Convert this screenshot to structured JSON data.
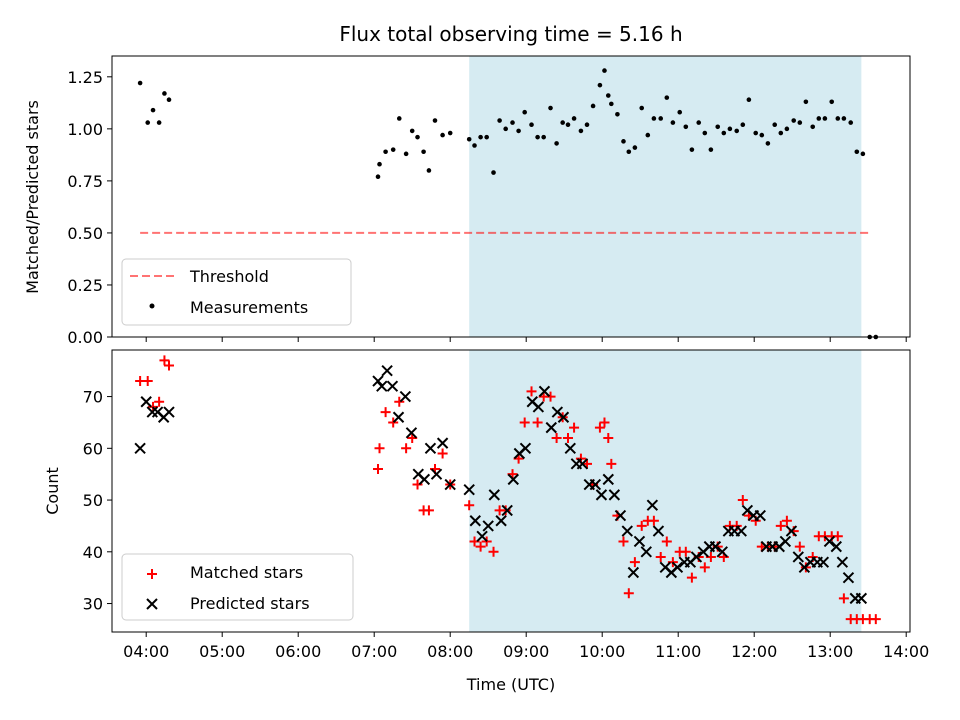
{
  "colors": {
    "shade": "#add8e6",
    "threshold": "#ff0000",
    "measurements": "#000000",
    "matched": "#ff0000",
    "predicted": "#000000"
  },
  "chart_data": [
    {
      "type": "scatter",
      "title": "Flux total observing time = 5.16 h",
      "xlabel": "",
      "ylabel": "Matched/Predicted stars",
      "x_unit": "hours UTC",
      "xlim": [
        3.55,
        14.05
      ],
      "ylim": [
        0.0,
        1.35
      ],
      "yticks": [
        0.0,
        0.25,
        0.5,
        0.75,
        1.0,
        1.25
      ],
      "ytick_labels": [
        "0.00",
        "0.25",
        "0.50",
        "0.75",
        "1.00",
        "1.25"
      ],
      "xticks": [
        4,
        5,
        6,
        7,
        8,
        9,
        10,
        11,
        12,
        13,
        14
      ],
      "shaded_interval": [
        8.25,
        13.41
      ],
      "legend_position": "lower-left",
      "series": [
        {
          "name": "Threshold",
          "kind": "dashed-line",
          "x": [
            3.92,
            13.55
          ],
          "y": [
            0.5,
            0.5
          ]
        },
        {
          "name": "Measurements",
          "kind": "dots",
          "x": [
            3.92,
            4.02,
            4.09,
            4.17,
            4.24,
            4.3,
            7.05,
            7.07,
            7.15,
            7.25,
            7.33,
            7.42,
            7.5,
            7.57,
            7.65,
            7.72,
            7.8,
            7.9,
            8.0,
            8.25,
            8.32,
            8.4,
            8.48,
            8.57,
            8.65,
            8.73,
            8.82,
            8.9,
            8.98,
            9.07,
            9.15,
            9.23,
            9.32,
            9.4,
            9.48,
            9.55,
            9.63,
            9.72,
            9.8,
            9.88,
            9.97,
            10.03,
            10.08,
            10.12,
            10.2,
            10.28,
            10.35,
            10.43,
            10.52,
            10.6,
            10.68,
            10.77,
            10.85,
            10.93,
            11.02,
            11.1,
            11.18,
            11.27,
            11.35,
            11.43,
            11.52,
            11.6,
            11.68,
            11.77,
            11.85,
            11.93,
            12.02,
            12.1,
            12.18,
            12.27,
            12.35,
            12.43,
            12.52,
            12.6,
            12.68,
            12.77,
            12.85,
            12.93,
            13.02,
            13.1,
            13.18,
            13.27,
            13.35,
            13.43,
            13.52,
            13.6
          ],
          "y": [
            1.22,
            1.03,
            1.09,
            1.03,
            1.17,
            1.14,
            0.77,
            0.83,
            0.89,
            0.9,
            1.05,
            0.88,
            0.99,
            0.96,
            0.89,
            0.8,
            1.04,
            0.97,
            0.98,
            0.95,
            0.92,
            0.96,
            0.96,
            0.79,
            1.04,
            1.0,
            1.03,
            0.99,
            1.08,
            1.02,
            0.96,
            0.96,
            1.1,
            0.93,
            1.03,
            1.02,
            1.05,
            0.99,
            1.02,
            1.11,
            1.21,
            1.28,
            1.16,
            1.12,
            1.07,
            0.94,
            0.89,
            0.91,
            1.1,
            0.97,
            1.05,
            1.05,
            1.15,
            1.03,
            1.08,
            1.01,
            0.9,
            1.03,
            0.98,
            0.9,
            1.01,
            0.98,
            1.0,
            0.99,
            1.02,
            1.14,
            0.98,
            0.97,
            0.93,
            1.02,
            0.98,
            1.0,
            1.04,
            1.03,
            1.13,
            1.01,
            1.05,
            1.05,
            1.13,
            1.05,
            1.05,
            1.03,
            0.89,
            0.88,
            0.0,
            0.0
          ]
        }
      ]
    },
    {
      "type": "scatter",
      "title": "",
      "xlabel": "Time (UTC)",
      "ylabel": "Count",
      "x_unit": "hours UTC",
      "xlim": [
        3.55,
        14.05
      ],
      "ylim": [
        24.5,
        79.0
      ],
      "yticks": [
        30,
        40,
        50,
        60,
        70
      ],
      "ytick_labels": [
        "30",
        "40",
        "50",
        "60",
        "70"
      ],
      "xticks": [
        4,
        5,
        6,
        7,
        8,
        9,
        10,
        11,
        12,
        13,
        14
      ],
      "xtick_labels": [
        "04:00",
        "05:00",
        "06:00",
        "07:00",
        "08:00",
        "09:00",
        "10:00",
        "11:00",
        "12:00",
        "13:00",
        "14:00"
      ],
      "shaded_interval": [
        8.25,
        13.41
      ],
      "legend_position": "lower-left",
      "series": [
        {
          "name": "Matched stars",
          "marker": "plus",
          "x": [
            3.92,
            4.02,
            4.09,
            4.17,
            4.24,
            4.3,
            7.05,
            7.07,
            7.15,
            7.25,
            7.33,
            7.42,
            7.5,
            7.57,
            7.65,
            7.72,
            7.8,
            7.9,
            8.0,
            8.25,
            8.32,
            8.4,
            8.48,
            8.57,
            8.65,
            8.73,
            8.82,
            8.9,
            8.98,
            9.07,
            9.15,
            9.23,
            9.32,
            9.4,
            9.48,
            9.55,
            9.63,
            9.72,
            9.8,
            9.88,
            9.97,
            10.03,
            10.08,
            10.12,
            10.2,
            10.28,
            10.35,
            10.43,
            10.52,
            10.6,
            10.68,
            10.77,
            10.85,
            10.93,
            11.02,
            11.1,
            11.18,
            11.27,
            11.35,
            11.43,
            11.52,
            11.6,
            11.68,
            11.77,
            11.85,
            11.93,
            12.02,
            12.1,
            12.18,
            12.27,
            12.35,
            12.43,
            12.52,
            12.6,
            12.68,
            12.77,
            12.85,
            12.93,
            13.02,
            13.1,
            13.18,
            13.27,
            13.35,
            13.43,
            13.52,
            13.6
          ],
          "y": [
            73,
            73,
            68,
            69,
            77,
            76,
            56,
            60,
            67,
            65,
            69,
            60,
            62,
            53,
            48,
            48,
            56,
            59,
            53,
            49,
            42,
            41,
            42,
            40,
            48,
            48,
            55,
            58,
            65,
            71,
            65,
            70,
            70,
            62,
            66,
            62,
            64,
            58,
            57,
            53,
            64,
            65,
            62,
            57,
            47,
            42,
            32,
            38,
            45,
            46,
            46,
            39,
            42,
            38,
            40,
            40,
            35,
            39,
            37,
            39,
            41,
            39,
            45,
            45,
            50,
            47,
            46,
            41,
            41,
            41,
            45,
            46,
            44,
            41,
            37,
            39,
            43,
            43,
            43,
            43,
            31,
            27,
            27,
            27,
            27,
            27
          ],
          "note_last_points_x": [
            13.45,
            13.52,
            13.6
          ]
        },
        {
          "name": "Predicted stars",
          "marker": "cross",
          "x": [
            3.92,
            4.0,
            4.08,
            4.15,
            4.23,
            4.3,
            7.05,
            7.1,
            7.17,
            7.24,
            7.32,
            7.41,
            7.49,
            7.58,
            7.66,
            7.74,
            7.82,
            7.9,
            8.0,
            8.25,
            8.33,
            8.42,
            8.5,
            8.58,
            8.67,
            8.75,
            8.83,
            8.91,
            8.99,
            9.08,
            9.16,
            9.24,
            9.33,
            9.41,
            9.49,
            9.58,
            9.66,
            9.74,
            9.83,
            9.91,
            9.99,
            10.08,
            10.16,
            10.24,
            10.33,
            10.41,
            10.49,
            10.58,
            10.66,
            10.74,
            10.83,
            10.91,
            10.99,
            11.08,
            11.16,
            11.24,
            11.33,
            11.41,
            11.49,
            11.58,
            11.66,
            11.74,
            11.83,
            11.91,
            11.99,
            12.08,
            12.16,
            12.24,
            12.33,
            12.41,
            12.49,
            12.58,
            12.66,
            12.74,
            12.83,
            12.91,
            12.99,
            13.08,
            13.16,
            13.24,
            13.33,
            13.41
          ],
          "y": [
            60,
            69,
            67,
            67,
            66,
            67,
            73,
            72,
            75,
            72,
            66,
            70,
            63,
            55,
            54,
            60,
            55,
            61,
            53,
            52,
            46,
            43,
            45,
            51,
            46,
            48,
            54,
            59,
            60,
            69,
            68,
            71,
            64,
            67,
            66,
            60,
            57,
            57,
            53,
            53,
            51,
            54,
            51,
            47,
            44,
            36,
            42,
            40,
            49,
            44,
            37,
            36,
            37,
            38,
            38,
            39,
            40,
            41,
            41,
            40,
            44,
            44,
            44,
            48,
            47,
            47,
            41,
            41,
            41,
            42,
            44,
            39,
            37,
            38,
            38,
            38,
            42,
            41,
            38,
            35,
            31,
            31
          ]
        }
      ]
    }
  ]
}
